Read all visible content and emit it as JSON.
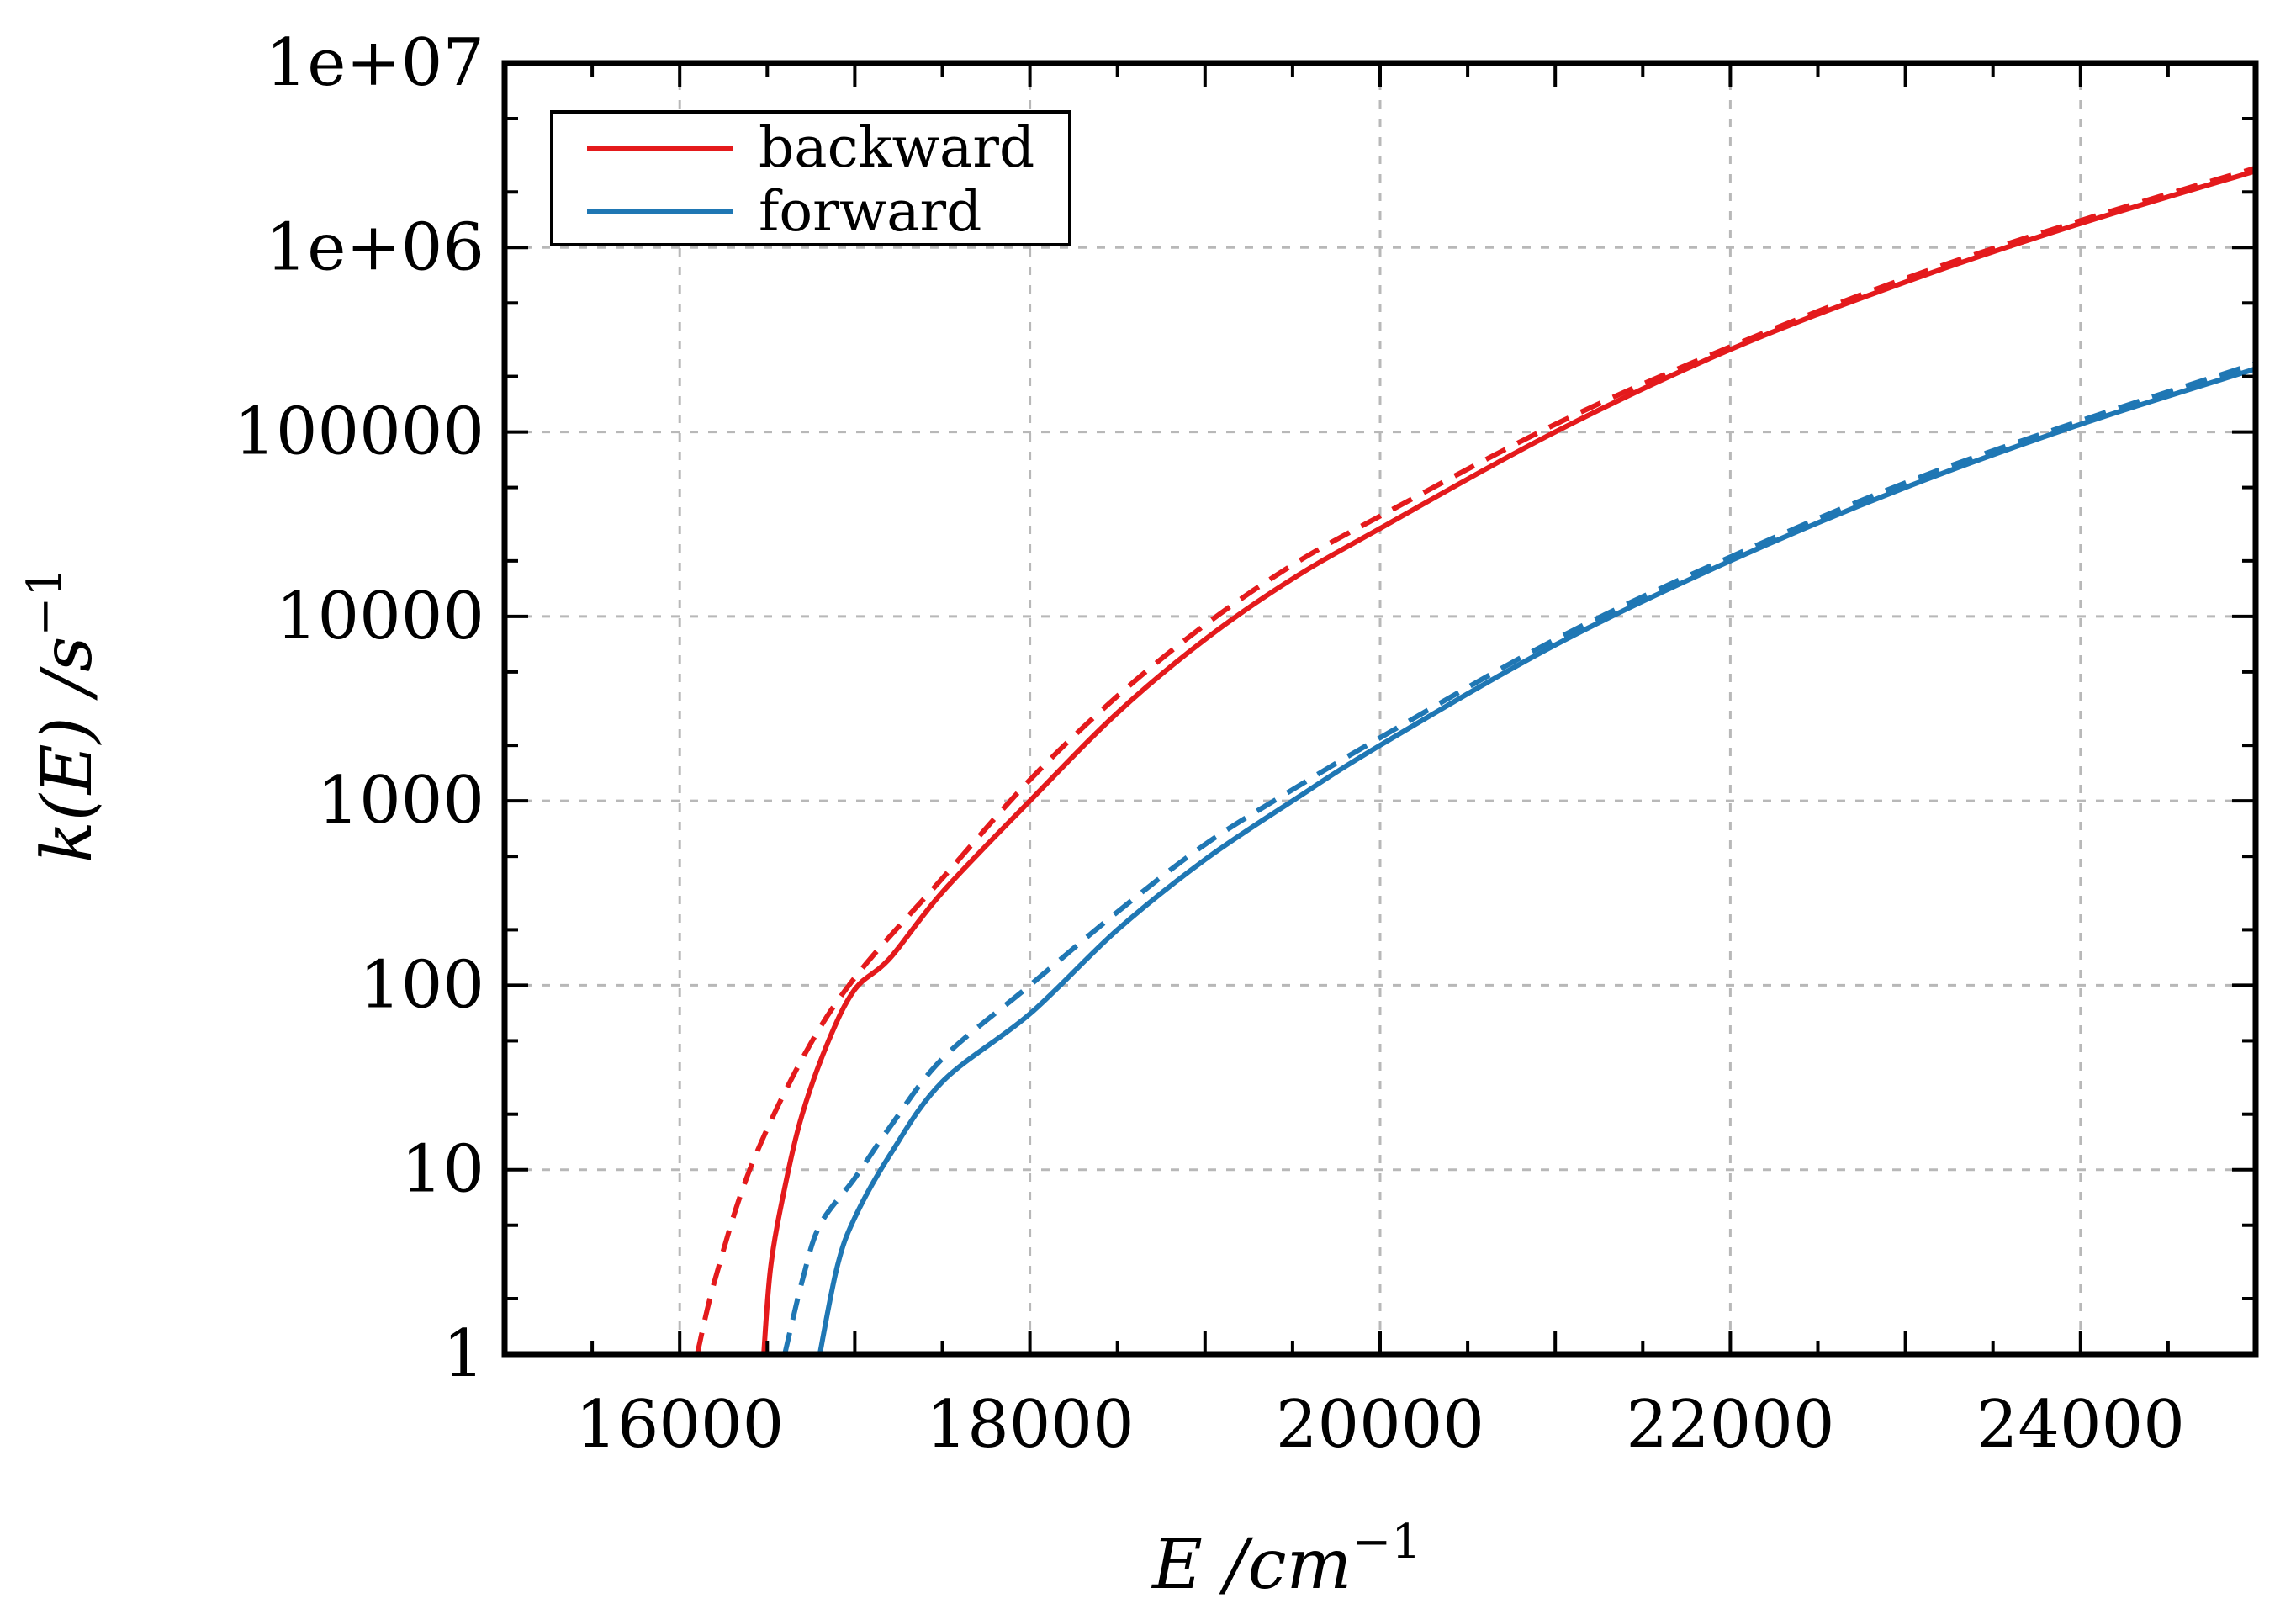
{
  "chart_data": {
    "type": "line",
    "title": "",
    "xlabel": "E /cm",
    "xlabel_sup": "−1",
    "ylabel": "k(E) /s",
    "ylabel_sup": "−1",
    "xlim": [
      15000,
      25000
    ],
    "ylim": [
      1,
      10000000
    ],
    "yscale": "log",
    "grid": true,
    "legend_position": "top-left",
    "x_ticks": [
      16000,
      18000,
      20000,
      22000,
      24000
    ],
    "x_tick_labels": [
      "16000",
      "18000",
      "20000",
      "22000",
      "24000"
    ],
    "y_ticks": [
      1,
      10,
      100,
      1000,
      10000,
      100000,
      1000000,
      10000000
    ],
    "y_tick_labels": [
      "1",
      "10",
      "100",
      "1000",
      "10000",
      "100000",
      "1e+06",
      "1e+07"
    ],
    "legend": [
      "backward",
      "forward"
    ],
    "series": [
      {
        "name": "backward",
        "style": "solid",
        "color": "#e41a1c",
        "x": [
          16480,
          16520,
          16600,
          16700,
          16850,
          17000,
          17200,
          17500,
          18000,
          18500,
          19000,
          19500,
          20000,
          21000,
          22000,
          23000,
          24000,
          25000
        ],
        "y": [
          1,
          3,
          8,
          20,
          50,
          95,
          140,
          320,
          1000,
          3000,
          7500,
          16000,
          30000,
          100000,
          280000,
          650000,
          1350000,
          2600000
        ]
      },
      {
        "name": "backward (dashed)",
        "style": "dashed",
        "color": "#e41a1c",
        "x": [
          16100,
          16200,
          16400,
          16700,
          17000,
          17500,
          18000,
          18500,
          19000,
          19500,
          20000,
          21000,
          22000,
          23000,
          24000,
          25000
        ],
        "y": [
          1,
          2.5,
          10,
          40,
          110,
          380,
          1300,
          3700,
          9000,
          19000,
          35000,
          110000,
          290000,
          680000,
          1400000,
          2700000
        ]
      },
      {
        "name": "forward",
        "style": "solid",
        "color": "#1f77b4",
        "x": [
          16800,
          16900,
          17000,
          17200,
          17500,
          18000,
          18500,
          19000,
          19500,
          20000,
          21000,
          22000,
          23000,
          24000,
          25000
        ],
        "y": [
          1,
          3,
          5.5,
          12,
          30,
          70,
          200,
          480,
          1000,
          2000,
          7000,
          20000,
          50000,
          110000,
          220000
        ]
      },
      {
        "name": "forward (dashed)",
        "style": "dashed",
        "color": "#1f77b4",
        "x": [
          16600,
          16700,
          16800,
          17000,
          17200,
          17500,
          18000,
          18500,
          19000,
          19500,
          20000,
          21000,
          22000,
          23000,
          24000,
          25000
        ],
        "y": [
          1,
          2.5,
          5,
          9,
          17,
          40,
          100,
          250,
          580,
          1150,
          2200,
          7500,
          21000,
          53000,
          115000,
          235000
        ]
      }
    ]
  }
}
